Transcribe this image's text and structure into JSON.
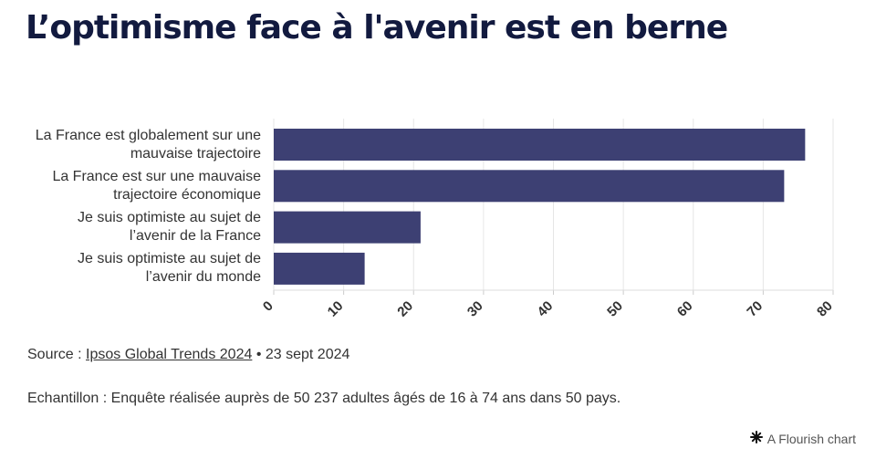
{
  "title": "L’optimisme face à l'avenir est en berne",
  "chart_data": {
    "type": "bar",
    "orientation": "horizontal",
    "categories": [
      [
        "La France est globalement sur une",
        "mauvaise trajectoire"
      ],
      [
        "La France est sur une mauvaise",
        "trajectoire économique"
      ],
      [
        "Je suis optimiste au sujet de",
        "l’avenir de la France"
      ],
      [
        "Je suis optimiste au sujet de",
        "l’avenir du monde"
      ]
    ],
    "values": [
      76,
      73,
      21,
      13
    ],
    "xlim": [
      0,
      80
    ],
    "xticks": [
      "0",
      "10",
      "20",
      "30",
      "40",
      "50",
      "60",
      "70",
      "80"
    ],
    "grid": true,
    "bar_color": "#3d4073"
  },
  "footer": {
    "source_prefix": "Source : ",
    "source_link": "Ipsos Global Trends 2024",
    "source_suffix": " • 23 sept 2024",
    "sample": "Echantillon : Enquête réalisée auprès de 50 237 adultes âgés de 16 à 74 ans dans 50 pays.",
    "credit": "A Flourish chart",
    "credit_icon": "flourish-asterisk-icon"
  }
}
